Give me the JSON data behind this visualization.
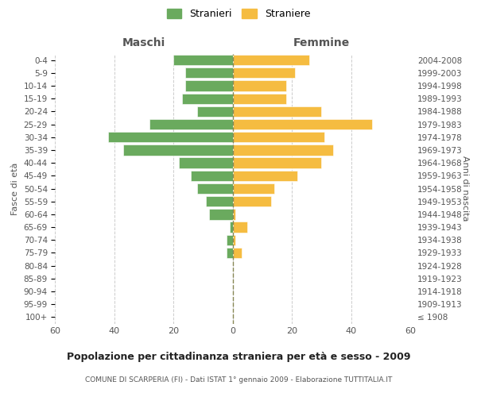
{
  "age_groups": [
    "100+",
    "95-99",
    "90-94",
    "85-89",
    "80-84",
    "75-79",
    "70-74",
    "65-69",
    "60-64",
    "55-59",
    "50-54",
    "45-49",
    "40-44",
    "35-39",
    "30-34",
    "25-29",
    "20-24",
    "15-19",
    "10-14",
    "5-9",
    "0-4"
  ],
  "birth_years": [
    "≤ 1908",
    "1909-1913",
    "1914-1918",
    "1919-1923",
    "1924-1928",
    "1929-1933",
    "1934-1938",
    "1939-1943",
    "1944-1948",
    "1949-1953",
    "1954-1958",
    "1959-1963",
    "1964-1968",
    "1969-1973",
    "1974-1978",
    "1979-1983",
    "1984-1988",
    "1989-1993",
    "1994-1998",
    "1999-2003",
    "2004-2008"
  ],
  "maschi": [
    0,
    0,
    0,
    0,
    0,
    2,
    2,
    1,
    8,
    9,
    12,
    14,
    18,
    37,
    42,
    28,
    12,
    17,
    16,
    16,
    20
  ],
  "femmine": [
    0,
    0,
    0,
    0,
    0,
    3,
    1,
    5,
    1,
    13,
    14,
    22,
    30,
    34,
    31,
    47,
    30,
    18,
    18,
    21,
    26
  ],
  "maschi_color": "#6aaa5e",
  "femmine_color": "#f5bc41",
  "background_color": "#ffffff",
  "grid_color": "#cccccc",
  "title": "Popolazione per cittadinanza straniera per età e sesso - 2009",
  "subtitle": "COMUNE DI SCARPERIA (FI) - Dati ISTAT 1° gennaio 2009 - Elaborazione TUTTITALIA.IT",
  "legend_stranieri": "Stranieri",
  "legend_straniere": "Straniere",
  "xlabel_left": "Maschi",
  "xlabel_right": "Femmine",
  "ylabel_left": "Fasce di età",
  "ylabel_right": "Anni di nascita",
  "xlim": 60
}
